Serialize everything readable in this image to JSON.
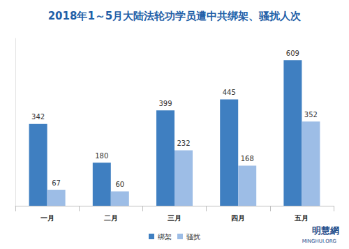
{
  "chart_data": {
    "type": "bar",
    "title": "2018年1～5月大陆法轮功学员遭中共绑架、骚扰人次",
    "categories": [
      "一月",
      "二月",
      "三月",
      "四月",
      "五月"
    ],
    "series": [
      {
        "name": "绑架",
        "color": "#3f7fc1",
        "values": [
          342,
          180,
          399,
          445,
          609
        ]
      },
      {
        "name": "骚扰",
        "color": "#9dbde6",
        "values": [
          67,
          60,
          232,
          168,
          352
        ]
      }
    ],
    "ylim": [
      0,
      700
    ],
    "grid": false,
    "legend": "bottom",
    "data_labels": true,
    "tick_labels": "x",
    "annotations": [
      "明慧網",
      "MINGHUI.ORG"
    ]
  }
}
